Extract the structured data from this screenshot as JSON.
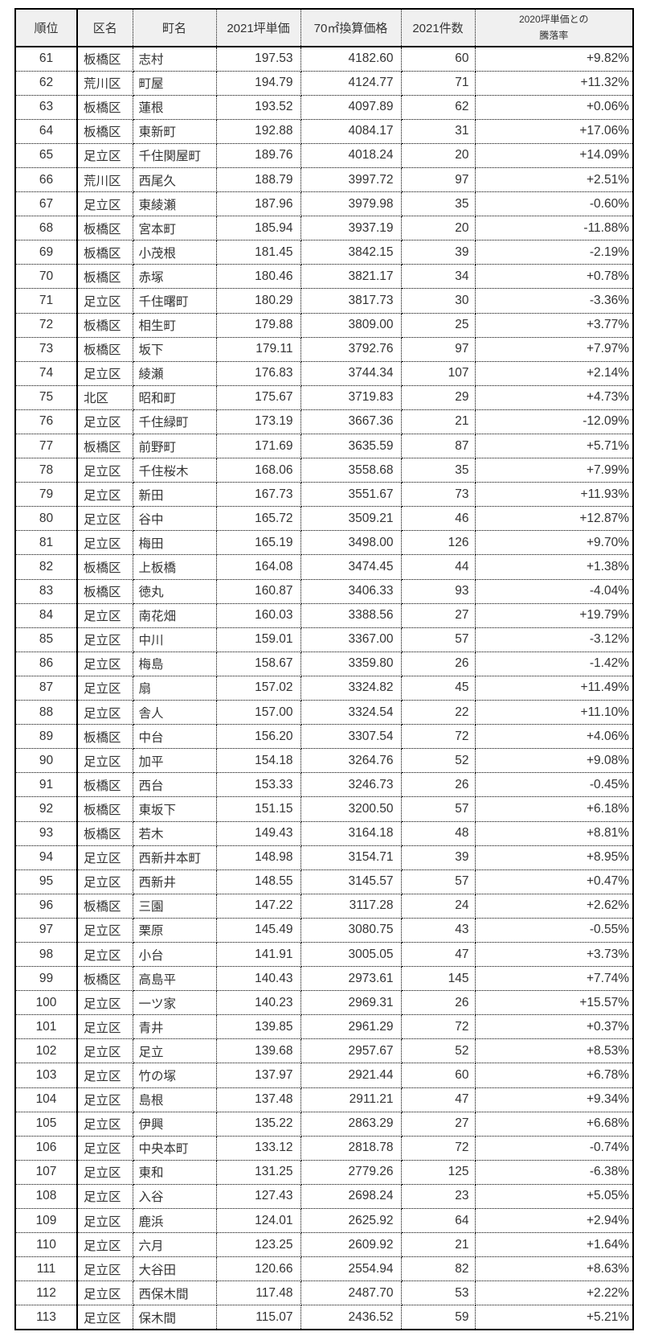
{
  "table": {
    "headers": {
      "rank": "順位",
      "ward": "区名",
      "town": "町名",
      "tsubo": "2021坪単価",
      "price70": "70㎡換算価格",
      "count": "2021件数",
      "change_line1": "2020坪単価との",
      "change_line2": "騰落率"
    },
    "row_fields": [
      "rank",
      "ward",
      "town",
      "tsubo",
      "price70",
      "count",
      "change"
    ],
    "rows": [
      [
        "61",
        "板橋区",
        "志村",
        "197.53",
        "4182.60",
        "60",
        "+9.82%"
      ],
      [
        "62",
        "荒川区",
        "町屋",
        "194.79",
        "4124.77",
        "71",
        "+11.32%"
      ],
      [
        "63",
        "板橋区",
        "蓮根",
        "193.52",
        "4097.89",
        "62",
        "+0.06%"
      ],
      [
        "64",
        "板橋区",
        "東新町",
        "192.88",
        "4084.17",
        "31",
        "+17.06%"
      ],
      [
        "65",
        "足立区",
        "千住関屋町",
        "189.76",
        "4018.24",
        "20",
        "+14.09%"
      ],
      [
        "66",
        "荒川区",
        "西尾久",
        "188.79",
        "3997.72",
        "97",
        "+2.51%"
      ],
      [
        "67",
        "足立区",
        "東綾瀬",
        "187.96",
        "3979.98",
        "35",
        "-0.60%"
      ],
      [
        "68",
        "板橋区",
        "宮本町",
        "185.94",
        "3937.19",
        "20",
        "-11.88%"
      ],
      [
        "69",
        "板橋区",
        "小茂根",
        "181.45",
        "3842.15",
        "39",
        "-2.19%"
      ],
      [
        "70",
        "板橋区",
        "赤塚",
        "180.46",
        "3821.17",
        "34",
        "+0.78%"
      ],
      [
        "71",
        "足立区",
        "千住曙町",
        "180.29",
        "3817.73",
        "30",
        "-3.36%"
      ],
      [
        "72",
        "板橋区",
        "相生町",
        "179.88",
        "3809.00",
        "25",
        "+3.77%"
      ],
      [
        "73",
        "板橋区",
        "坂下",
        "179.11",
        "3792.76",
        "97",
        "+7.97%"
      ],
      [
        "74",
        "足立区",
        "綾瀬",
        "176.83",
        "3744.34",
        "107",
        "+2.14%"
      ],
      [
        "75",
        "北区",
        "昭和町",
        "175.67",
        "3719.83",
        "29",
        "+4.73%"
      ],
      [
        "76",
        "足立区",
        "千住緑町",
        "173.19",
        "3667.36",
        "21",
        "-12.09%"
      ],
      [
        "77",
        "板橋区",
        "前野町",
        "171.69",
        "3635.59",
        "87",
        "+5.71%"
      ],
      [
        "78",
        "足立区",
        "千住桜木",
        "168.06",
        "3558.68",
        "35",
        "+7.99%"
      ],
      [
        "79",
        "足立区",
        "新田",
        "167.73",
        "3551.67",
        "73",
        "+11.93%"
      ],
      [
        "80",
        "足立区",
        "谷中",
        "165.72",
        "3509.21",
        "46",
        "+12.87%"
      ],
      [
        "81",
        "足立区",
        "梅田",
        "165.19",
        "3498.00",
        "126",
        "+9.70%"
      ],
      [
        "82",
        "板橋区",
        "上板橋",
        "164.08",
        "3474.45",
        "44",
        "+1.38%"
      ],
      [
        "83",
        "板橋区",
        "徳丸",
        "160.87",
        "3406.33",
        "93",
        "-4.04%"
      ],
      [
        "84",
        "足立区",
        "南花畑",
        "160.03",
        "3388.56",
        "27",
        "+19.79%"
      ],
      [
        "85",
        "足立区",
        "中川",
        "159.01",
        "3367.00",
        "57",
        "-3.12%"
      ],
      [
        "86",
        "足立区",
        "梅島",
        "158.67",
        "3359.80",
        "26",
        "-1.42%"
      ],
      [
        "87",
        "足立区",
        "扇",
        "157.02",
        "3324.82",
        "45",
        "+11.49%"
      ],
      [
        "88",
        "足立区",
        "舎人",
        "157.00",
        "3324.54",
        "22",
        "+11.10%"
      ],
      [
        "89",
        "板橋区",
        "中台",
        "156.20",
        "3307.54",
        "72",
        "+4.06%"
      ],
      [
        "90",
        "足立区",
        "加平",
        "154.18",
        "3264.76",
        "52",
        "+9.08%"
      ],
      [
        "91",
        "板橋区",
        "西台",
        "153.33",
        "3246.73",
        "26",
        "-0.45%"
      ],
      [
        "92",
        "板橋区",
        "東坂下",
        "151.15",
        "3200.50",
        "57",
        "+6.18%"
      ],
      [
        "93",
        "板橋区",
        "若木",
        "149.43",
        "3164.18",
        "48",
        "+8.81%"
      ],
      [
        "94",
        "足立区",
        "西新井本町",
        "148.98",
        "3154.71",
        "39",
        "+8.95%"
      ],
      [
        "95",
        "足立区",
        "西新井",
        "148.55",
        "3145.57",
        "57",
        "+0.47%"
      ],
      [
        "96",
        "板橋区",
        "三園",
        "147.22",
        "3117.28",
        "24",
        "+2.62%"
      ],
      [
        "97",
        "足立区",
        "栗原",
        "145.49",
        "3080.75",
        "43",
        "-0.55%"
      ],
      [
        "98",
        "足立区",
        "小台",
        "141.91",
        "3005.05",
        "47",
        "+3.73%"
      ],
      [
        "99",
        "板橋区",
        "高島平",
        "140.43",
        "2973.61",
        "145",
        "+7.74%"
      ],
      [
        "100",
        "足立区",
        "一ツ家",
        "140.23",
        "2969.31",
        "26",
        "+15.57%"
      ],
      [
        "101",
        "足立区",
        "青井",
        "139.85",
        "2961.29",
        "72",
        "+0.37%"
      ],
      [
        "102",
        "足立区",
        "足立",
        "139.68",
        "2957.67",
        "52",
        "+8.53%"
      ],
      [
        "103",
        "足立区",
        "竹の塚",
        "137.97",
        "2921.44",
        "60",
        "+6.78%"
      ],
      [
        "104",
        "足立区",
        "島根",
        "137.48",
        "2911.21",
        "47",
        "+9.34%"
      ],
      [
        "105",
        "足立区",
        "伊興",
        "135.22",
        "2863.29",
        "27",
        "+6.68%"
      ],
      [
        "106",
        "足立区",
        "中央本町",
        "133.12",
        "2818.78",
        "72",
        "-0.74%"
      ],
      [
        "107",
        "足立区",
        "東和",
        "131.25",
        "2779.26",
        "125",
        "-6.38%"
      ],
      [
        "108",
        "足立区",
        "入谷",
        "127.43",
        "2698.24",
        "23",
        "+5.05%"
      ],
      [
        "109",
        "足立区",
        "鹿浜",
        "124.01",
        "2625.92",
        "64",
        "+2.94%"
      ],
      [
        "110",
        "足立区",
        "六月",
        "123.25",
        "2609.92",
        "21",
        "+1.64%"
      ],
      [
        "111",
        "足立区",
        "大谷田",
        "120.66",
        "2554.94",
        "82",
        "+8.63%"
      ],
      [
        "112",
        "足立区",
        "西保木間",
        "117.48",
        "2487.70",
        "53",
        "+2.22%"
      ],
      [
        "113",
        "足立区",
        "保木間",
        "115.07",
        "2436.52",
        "59",
        "+5.21%"
      ]
    ]
  },
  "colors": {
    "header_bg": "#f0f0f0",
    "border": "#000000",
    "text": "#333333",
    "page_bg": "#ffffff"
  }
}
